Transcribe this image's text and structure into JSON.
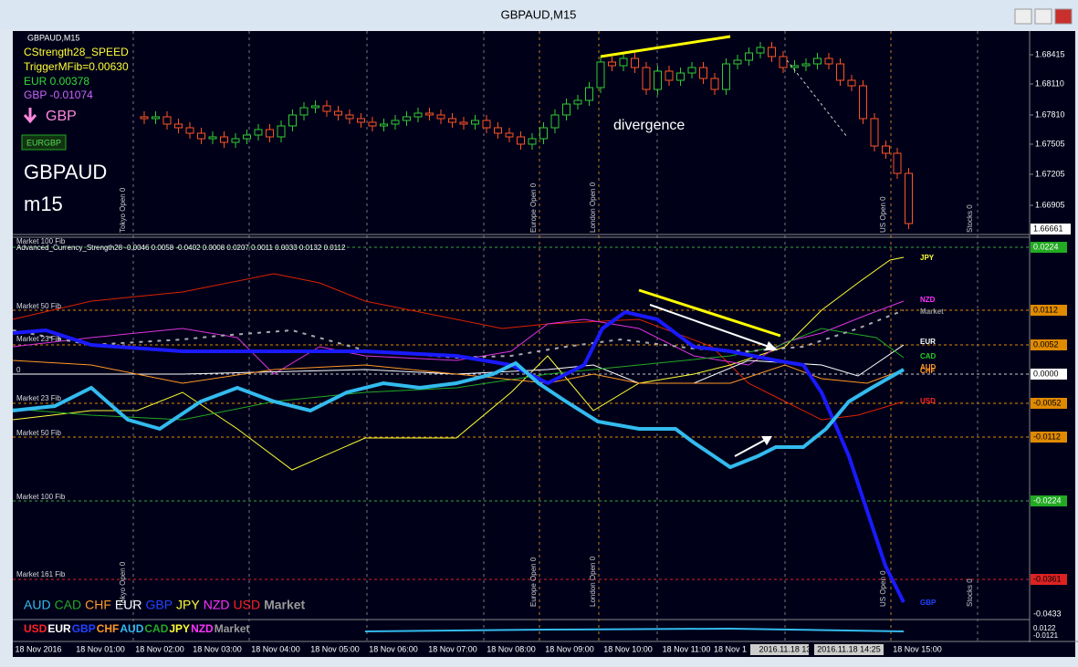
{
  "window": {
    "title": "GBPAUD,M15"
  },
  "price_panel": {
    "symbol_label": "GBPAUD,M15",
    "indicator": "CStrength28_SPEED",
    "trigger": "TriggerMFib=0.00630",
    "eur": "EUR 0.00378",
    "gbp": "GBP -0.01074",
    "signal": "GBP",
    "button": "EURGBP",
    "pair": "GBPAUD",
    "timeframe": "m15",
    "annotation": "divergence",
    "price_labels": [
      "1.68415",
      "1.68110",
      "1.67810",
      "1.67505",
      "1.67205",
      "1.66905"
    ],
    "current_price": "1.66661"
  },
  "sessions": [
    "Tokyo Open 0",
    "Europe Open 0",
    "London Open 0",
    "US Open 0",
    "Stocks 0"
  ],
  "indicator_panel": {
    "header": "Advanced_Currency_Strength28 -0.0046 0.0058 -0.0402 0.0008 0.0207 0.0011 0.0033 0.0132 0.0112",
    "fib_labels": [
      "Market 100 Fib",
      "Market 50 Fib",
      "Market 23 Fib",
      "0",
      "Market 23 Fib",
      "Market 50 Fib",
      "Market 100 Fib",
      "Market 161 Fib"
    ],
    "axis_labels": [
      "0.0224",
      "0.0112",
      "0.0052",
      "0.0000",
      "-0.0052",
      "-0.0112",
      "-0.0224",
      "-0.0361",
      "-0.0433"
    ],
    "currency_labels": [
      "JPY",
      "NZD",
      "Market",
      "EUR",
      "CAD",
      "AUD",
      "CHF",
      "USD",
      "GBP"
    ],
    "legend": [
      "AUD",
      "CAD",
      "CHF",
      "EUR",
      "GBP",
      "JPY",
      "NZD",
      "USD",
      "Market"
    ]
  },
  "lower_panel": {
    "legend": [
      "USD",
      "EUR",
      "GBP",
      "CHF",
      "AUD",
      "CAD",
      "JPY",
      "NZD",
      "Market"
    ],
    "axis_labels": [
      "0.0122",
      "-0.0121"
    ]
  },
  "time_axis": [
    "18 Nov 2016",
    "18 Nov 01:00",
    "18 Nov 02:00",
    "18 Nov 03:00",
    "18 Nov 04:00",
    "18 Nov 05:00",
    "18 Nov 06:00",
    "18 Nov 07:00",
    "18 Nov 08:00",
    "18 Nov 09:00",
    "18 Nov 10:00",
    "18 Nov 11:00",
    "18 Nov 1",
    "2016.11.18 13",
    "2016.11.18 14:25",
    "18 Nov 15:00"
  ]
}
